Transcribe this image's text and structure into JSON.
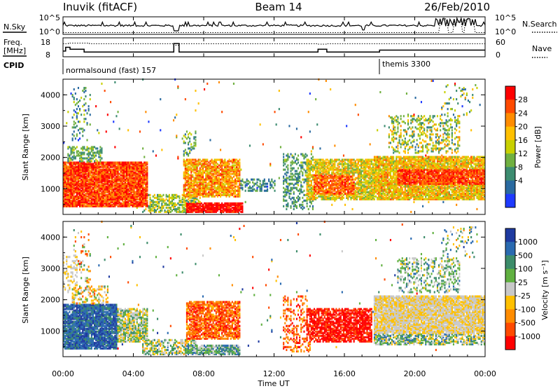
{
  "header": {
    "site": "Inuvik (fitACF)",
    "beam": "Beam 14",
    "date": "26/Feb/2010"
  },
  "top_panels": {
    "nsky_label": "N.Sky",
    "nsky_ticks": [
      "10^5",
      "10^0"
    ],
    "nsearch_label": "N.Search",
    "nsearch_ticks": [
      "10^5",
      "10^0"
    ],
    "freq_label": "Freq.",
    "freq_unit": "[MHz]",
    "freq_ticks": [
      "18",
      "8"
    ],
    "nave_label": "Nave",
    "nave_ticks": [
      "60",
      "0"
    ],
    "cpid_label": "CPID",
    "cpid_segments": [
      {
        "label": "normalsound (fast) 157",
        "start_hour": 0
      },
      {
        "label": "themis 3300",
        "start_hour": 18
      }
    ]
  },
  "x_axis": {
    "label": "Time UT",
    "ticks": [
      "00:00",
      "04:00",
      "08:00",
      "12:00",
      "16:00",
      "20:00",
      "00:00"
    ],
    "range_hours": [
      0,
      24
    ]
  },
  "chart_data": [
    {
      "type": "heatmap",
      "quantity": "power",
      "ylabel": "Slant Range [km]",
      "ylim": [
        180,
        4500
      ],
      "yticks": [
        "1000",
        "2000",
        "3000",
        "4000"
      ],
      "colorbar": {
        "label": "Power [dB]",
        "ticks": [
          "28",
          "24",
          "20",
          "16",
          "12",
          "8",
          "4"
        ],
        "colors": [
          "#ff0000",
          "#ff4a00",
          "#ff8c00",
          "#ffc000",
          "#c8d000",
          "#70b040",
          "#3c8c70",
          "#2a6aa0",
          "#1e3aff"
        ]
      },
      "regions": [
        {
          "t0": 0.0,
          "t1": 4.8,
          "r0": 400,
          "r1": 1800,
          "density": 0.92,
          "level": 0.85,
          "spread": 0.18
        },
        {
          "t0": 0.2,
          "t1": 2.2,
          "r0": 1800,
          "r1": 2300,
          "density": 0.5,
          "level": 0.35,
          "spread": 0.15
        },
        {
          "t0": 2.5,
          "t1": 4.8,
          "r0": 800,
          "r1": 1700,
          "density": 0.75,
          "level": 0.55,
          "spread": 0.2
        },
        {
          "t0": 4.5,
          "t1": 7.8,
          "r0": 200,
          "r1": 800,
          "density": 0.55,
          "level": 0.45,
          "spread": 0.2
        },
        {
          "t0": 6.8,
          "t1": 10.0,
          "r0": 700,
          "r1": 1900,
          "density": 0.8,
          "level": 0.7,
          "spread": 0.2
        },
        {
          "t0": 7.0,
          "t1": 10.2,
          "r0": 200,
          "r1": 500,
          "density": 0.9,
          "level": 0.95,
          "spread": 0.1
        },
        {
          "t0": 10.0,
          "t1": 12.0,
          "r0": 900,
          "r1": 1300,
          "density": 0.35,
          "level": 0.25,
          "spread": 0.15
        },
        {
          "t0": 12.5,
          "t1": 14.2,
          "r0": 300,
          "r1": 2100,
          "density": 0.35,
          "level": 0.3,
          "spread": 0.15
        },
        {
          "t0": 13.8,
          "t1": 17.8,
          "r0": 600,
          "r1": 1900,
          "density": 0.75,
          "level": 0.55,
          "spread": 0.2
        },
        {
          "t0": 14.2,
          "t1": 16.5,
          "r0": 800,
          "r1": 1400,
          "density": 0.85,
          "level": 0.8,
          "spread": 0.15
        },
        {
          "t0": 17.6,
          "t1": 24.0,
          "r0": 600,
          "r1": 2000,
          "density": 0.85,
          "level": 0.6,
          "spread": 0.2
        },
        {
          "t0": 19.0,
          "t1": 24.0,
          "r0": 1100,
          "r1": 1600,
          "density": 0.9,
          "level": 0.85,
          "spread": 0.12
        },
        {
          "t0": 18.5,
          "t1": 22.5,
          "r0": 2100,
          "r1": 3300,
          "density": 0.3,
          "level": 0.45,
          "spread": 0.25
        },
        {
          "t0": 0.5,
          "t1": 1.5,
          "r0": 2500,
          "r1": 4200,
          "density": 0.15,
          "level": 0.3,
          "spread": 0.2
        },
        {
          "t0": 6.8,
          "t1": 7.5,
          "r0": 2000,
          "r1": 2800,
          "density": 0.3,
          "level": 0.35,
          "spread": 0.2
        },
        {
          "t0": 21.5,
          "t1": 23.5,
          "r0": 3300,
          "r1": 4300,
          "density": 0.1,
          "level": 0.4,
          "spread": 0.3
        }
      ]
    },
    {
      "type": "heatmap",
      "quantity": "velocity",
      "ylabel": "Slant Range [km]",
      "ylim": [
        180,
        4500
      ],
      "yticks": [
        "1000",
        "2000",
        "3000",
        "4000"
      ],
      "colorbar": {
        "label": "Velocity [m s⁻¹]",
        "ticks": [
          "1000",
          "500",
          "100",
          "25",
          "-25",
          "-100",
          "-500",
          "-1000"
        ],
        "colors": [
          "#1e3aa0",
          "#2a6ab0",
          "#3c8c6a",
          "#60b040",
          "#c8c8c8",
          "#ffc000",
          "#ff8c00",
          "#ff4a00",
          "#ff0000"
        ]
      },
      "regions": [
        {
          "t0": 0.0,
          "t1": 3.0,
          "r0": 400,
          "r1": 1800,
          "density": 0.9,
          "level": 0.85,
          "spread": 0.12
        },
        {
          "t0": 2.5,
          "t1": 4.8,
          "r0": 600,
          "r1": 1700,
          "density": 0.75,
          "level": 0.55,
          "spread": 0.2
        },
        {
          "t0": 0.5,
          "t1": 2.5,
          "r0": 1800,
          "r1": 2400,
          "density": 0.35,
          "level": 0.45,
          "spread": 0.25
        },
        {
          "t0": 4.5,
          "t1": 7.5,
          "r0": 200,
          "r1": 700,
          "density": 0.55,
          "level": 0.55,
          "spread": 0.25
        },
        {
          "t0": 7.0,
          "t1": 10.0,
          "r0": 700,
          "r1": 1900,
          "density": 0.75,
          "level": 0.2,
          "spread": 0.15
        },
        {
          "t0": 7.0,
          "t1": 10.0,
          "r0": 200,
          "r1": 500,
          "density": 0.85,
          "level": 0.65,
          "spread": 0.2
        },
        {
          "t0": 12.5,
          "t1": 14.0,
          "r0": 300,
          "r1": 2100,
          "density": 0.3,
          "level": 0.2,
          "spread": 0.15
        },
        {
          "t0": 13.8,
          "t1": 17.5,
          "r0": 600,
          "r1": 1700,
          "density": 0.75,
          "level": 0.08,
          "spread": 0.08
        },
        {
          "t0": 17.6,
          "t1": 24.0,
          "r0": 900,
          "r1": 2100,
          "density": 0.9,
          "level": 0.45,
          "spread": 0.03
        },
        {
          "t0": 17.6,
          "t1": 24.0,
          "r0": 500,
          "r1": 1000,
          "density": 0.6,
          "level": 0.6,
          "spread": 0.25
        },
        {
          "t0": 19.0,
          "t1": 22.5,
          "r0": 2200,
          "r1": 3300,
          "density": 0.3,
          "level": 0.6,
          "spread": 0.2
        },
        {
          "t0": 0.0,
          "t1": 0.8,
          "r0": 2200,
          "r1": 3400,
          "density": 0.35,
          "level": 0.45,
          "spread": 0.05
        },
        {
          "t0": 0.5,
          "t1": 1.5,
          "r0": 2500,
          "r1": 4200,
          "density": 0.12,
          "level": 0.4,
          "spread": 0.3
        },
        {
          "t0": 21.5,
          "t1": 23.5,
          "r0": 3300,
          "r1": 4300,
          "density": 0.1,
          "level": 0.6,
          "spread": 0.3
        }
      ]
    }
  ]
}
